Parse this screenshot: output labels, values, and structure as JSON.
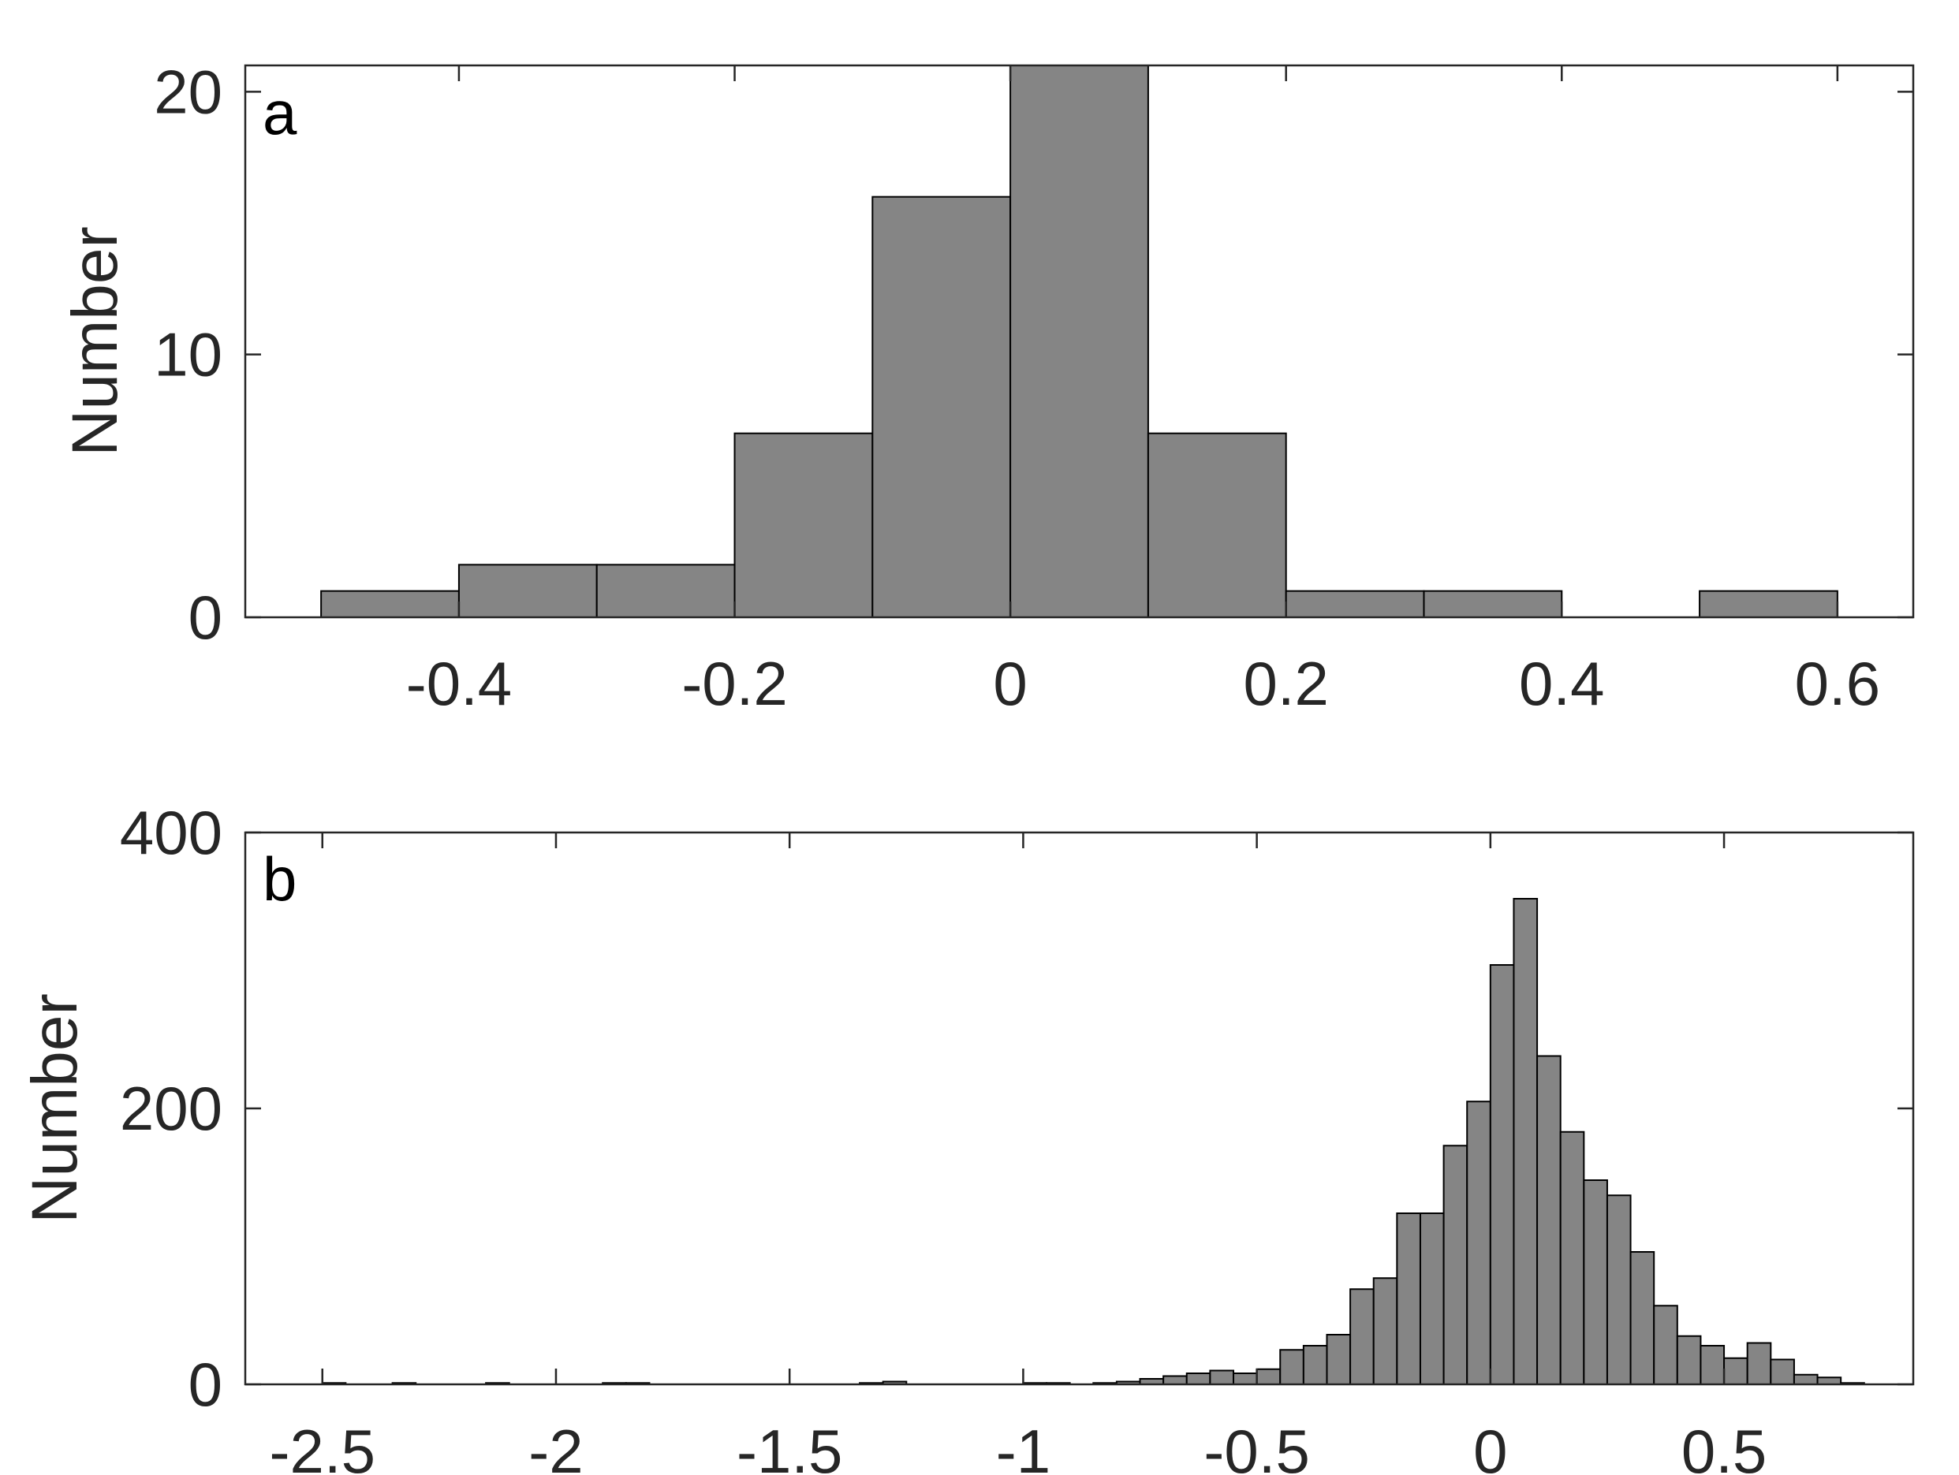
{
  "chart_data": [
    {
      "panel_label": "a",
      "type": "bar",
      "ylabel": "Number",
      "xlim": [
        -0.555,
        0.655
      ],
      "ylim": [
        0,
        21
      ],
      "xticks": [
        -0.4,
        -0.2,
        0,
        0.2,
        0.4,
        0.6
      ],
      "xtick_labels": [
        "-0.4",
        "-0.2",
        "0",
        "0.2",
        "0.4",
        "0.6"
      ],
      "yticks": [
        0,
        10,
        20
      ],
      "ytick_labels": [
        "0",
        "10",
        "20"
      ],
      "bin_width": 0.1,
      "bins": [
        {
          "x0": -0.5,
          "x1": -0.4,
          "value": 1
        },
        {
          "x0": -0.4,
          "x1": -0.3,
          "value": 2
        },
        {
          "x0": -0.3,
          "x1": -0.2,
          "value": 2
        },
        {
          "x0": -0.2,
          "x1": -0.1,
          "value": 7
        },
        {
          "x0": -0.1,
          "x1": 0.0,
          "value": 16
        },
        {
          "x0": 0.0,
          "x1": 0.1,
          "value": 21
        },
        {
          "x0": 0.1,
          "x1": 0.2,
          "value": 7
        },
        {
          "x0": 0.2,
          "x1": 0.3,
          "value": 1
        },
        {
          "x0": 0.3,
          "x1": 0.4,
          "value": 1
        },
        {
          "x0": 0.4,
          "x1": 0.5,
          "value": 0
        },
        {
          "x0": 0.5,
          "x1": 0.6,
          "value": 1
        }
      ],
      "grid": false,
      "bar_color": "#858585",
      "edge_color": "#000000"
    },
    {
      "panel_label": "b",
      "type": "bar",
      "ylabel": "Number",
      "xlim": [
        -2.665,
        0.905
      ],
      "ylim": [
        0,
        400
      ],
      "xticks": [
        -2.5,
        -2,
        -1.5,
        -1,
        -0.5,
        0,
        0.5
      ],
      "xtick_labels": [
        "-2.5",
        "-2",
        "-1.5",
        "-1",
        "-0.5",
        "0",
        "0.5"
      ],
      "yticks": [
        0,
        200,
        400
      ],
      "ytick_labels": [
        "0",
        "200",
        "400"
      ],
      "bin_width": 0.05,
      "bins": [
        {
          "x0": -2.5,
          "x1": -2.45,
          "value": 1
        },
        {
          "x0": -2.35,
          "x1": -2.3,
          "value": 1
        },
        {
          "x0": -2.15,
          "x1": -2.1,
          "value": 1
        },
        {
          "x0": -1.9,
          "x1": -1.85,
          "value": 1
        },
        {
          "x0": -1.85,
          "x1": -1.8,
          "value": 1
        },
        {
          "x0": -1.35,
          "x1": -1.3,
          "value": 1
        },
        {
          "x0": -1.3,
          "x1": -1.25,
          "value": 2
        },
        {
          "x0": -1.0,
          "x1": -0.95,
          "value": 1
        },
        {
          "x0": -0.95,
          "x1": -0.9,
          "value": 1
        },
        {
          "x0": -0.85,
          "x1": -0.8,
          "value": 1
        },
        {
          "x0": -0.8,
          "x1": -0.75,
          "value": 2
        },
        {
          "x0": -0.75,
          "x1": -0.7,
          "value": 4
        },
        {
          "x0": -0.7,
          "x1": -0.65,
          "value": 6
        },
        {
          "x0": -0.65,
          "x1": -0.6,
          "value": 8
        },
        {
          "x0": -0.6,
          "x1": -0.55,
          "value": 10
        },
        {
          "x0": -0.55,
          "x1": -0.5,
          "value": 8
        },
        {
          "x0": -0.5,
          "x1": -0.45,
          "value": 11
        },
        {
          "x0": -0.45,
          "x1": -0.4,
          "value": 25
        },
        {
          "x0": -0.4,
          "x1": -0.35,
          "value": 28
        },
        {
          "x0": -0.35,
          "x1": -0.3,
          "value": 36
        },
        {
          "x0": -0.3,
          "x1": -0.25,
          "value": 69
        },
        {
          "x0": -0.25,
          "x1": -0.2,
          "value": 77
        },
        {
          "x0": -0.2,
          "x1": -0.15,
          "value": 124
        },
        {
          "x0": -0.15,
          "x1": -0.1,
          "value": 124
        },
        {
          "x0": -0.1,
          "x1": -0.05,
          "value": 173
        },
        {
          "x0": -0.05,
          "x1": 0.0,
          "value": 205
        },
        {
          "x0": 0.0,
          "x1": 0.05,
          "value": 304
        },
        {
          "x0": 0.05,
          "x1": 0.1,
          "value": 352
        },
        {
          "x0": 0.1,
          "x1": 0.15,
          "value": 238
        },
        {
          "x0": 0.15,
          "x1": 0.2,
          "value": 183
        },
        {
          "x0": 0.2,
          "x1": 0.25,
          "value": 148
        },
        {
          "x0": 0.25,
          "x1": 0.3,
          "value": 137
        },
        {
          "x0": 0.3,
          "x1": 0.35,
          "value": 96
        },
        {
          "x0": 0.35,
          "x1": 0.4,
          "value": 57
        },
        {
          "x0": 0.4,
          "x1": 0.45,
          "value": 35
        },
        {
          "x0": 0.45,
          "x1": 0.5,
          "value": 28
        },
        {
          "x0": 0.5,
          "x1": 0.55,
          "value": 19
        },
        {
          "x0": 0.55,
          "x1": 0.6,
          "value": 30
        },
        {
          "x0": 0.6,
          "x1": 0.65,
          "value": 18
        },
        {
          "x0": 0.65,
          "x1": 0.7,
          "value": 7
        },
        {
          "x0": 0.7,
          "x1": 0.75,
          "value": 5
        },
        {
          "x0": 0.75,
          "x1": 0.8,
          "value": 1
        }
      ],
      "grid": false,
      "bar_color": "#858585",
      "edge_color": "#000000"
    }
  ]
}
